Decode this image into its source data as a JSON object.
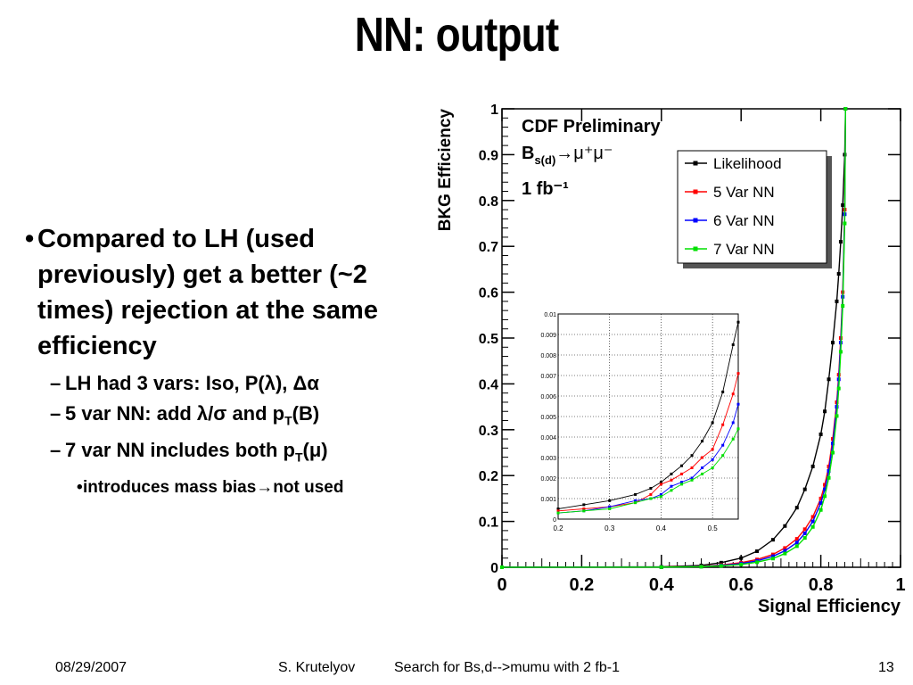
{
  "slide": {
    "title": "NN: output",
    "bullet1": "Compared to LH (used previously) get a better (~2 times) rejection at the same efficiency",
    "sub1": "LH had 3 vars: Iso, P(λ), Δα",
    "sub2_a": "5 var NN: add λ/σ and p",
    "sub2_sub": "T",
    "sub2_b": "(B)",
    "sub3_a": "7 var NN includes both p",
    "sub3_sub": "T",
    "sub3_b": "(μ)",
    "subsub1_a": "introduces mass bias",
    "subsub1_arrow": "→",
    "subsub1_b": "not used",
    "bullet_dot": "•",
    "dash": "–",
    "footer_date": "08/29/2007",
    "footer_author": "S. Krutelyov",
    "footer_talk": "Search for Bs,d-->mumu with 2 fb-1",
    "footer_page": "13"
  },
  "chart_data": [
    {
      "type": "line",
      "xlabel": "Signal Efficiency",
      "ylabel": "BKG Efficiency",
      "xlim": [
        0,
        1
      ],
      "ylim": [
        0,
        1
      ],
      "xticks": [
        "0",
        "0.2",
        "0.4",
        "0.6",
        "0.8",
        "1"
      ],
      "yticks": [
        "0",
        "0.1",
        "0.2",
        "0.3",
        "0.4",
        "0.5",
        "0.6",
        "0.7",
        "0.8",
        "0.9",
        "1"
      ],
      "annotation": {
        "line1": "CDF Preliminary",
        "line2_main": "B",
        "line2_sub": "s(d)",
        "line2_rest": "→μ⁺μ⁻",
        "line3": "1 fb⁻¹"
      },
      "legend_position": "top-right",
      "series": [
        {
          "name": "Likelihood",
          "color": "#000000",
          "x": [
            0,
            0.4,
            0.5,
            0.55,
            0.6,
            0.64,
            0.68,
            0.71,
            0.74,
            0.76,
            0.78,
            0.8,
            0.81,
            0.82,
            0.83,
            0.84,
            0.845,
            0.85,
            0.855,
            0.86,
            0.862
          ],
          "y": [
            0,
            0.001,
            0.004,
            0.01,
            0.02,
            0.035,
            0.06,
            0.09,
            0.13,
            0.17,
            0.22,
            0.29,
            0.34,
            0.41,
            0.49,
            0.58,
            0.64,
            0.71,
            0.79,
            0.9,
            1.0
          ]
        },
        {
          "name": "5 Var NN",
          "color": "#ff0000",
          "x": [
            0,
            0.4,
            0.5,
            0.55,
            0.6,
            0.64,
            0.68,
            0.71,
            0.74,
            0.76,
            0.78,
            0.8,
            0.81,
            0.82,
            0.83,
            0.84,
            0.845,
            0.85,
            0.855,
            0.86,
            0.862
          ],
          "y": [
            0,
            0.0005,
            0.002,
            0.005,
            0.01,
            0.017,
            0.028,
            0.042,
            0.062,
            0.083,
            0.11,
            0.15,
            0.18,
            0.22,
            0.28,
            0.36,
            0.42,
            0.5,
            0.6,
            0.78,
            1.0
          ]
        },
        {
          "name": "6 Var NN",
          "color": "#0000ff",
          "x": [
            0,
            0.4,
            0.5,
            0.55,
            0.6,
            0.64,
            0.68,
            0.71,
            0.74,
            0.76,
            0.78,
            0.8,
            0.81,
            0.82,
            0.83,
            0.84,
            0.845,
            0.85,
            0.855,
            0.86,
            0.862
          ],
          "y": [
            0,
            0.0004,
            0.0015,
            0.004,
            0.008,
            0.014,
            0.024,
            0.036,
            0.054,
            0.074,
            0.1,
            0.14,
            0.17,
            0.21,
            0.27,
            0.35,
            0.41,
            0.49,
            0.59,
            0.77,
            1.0
          ]
        },
        {
          "name": "7 Var NN",
          "color": "#00e000",
          "x": [
            0,
            0.4,
            0.5,
            0.55,
            0.6,
            0.64,
            0.68,
            0.71,
            0.74,
            0.76,
            0.78,
            0.8,
            0.81,
            0.82,
            0.83,
            0.84,
            0.845,
            0.85,
            0.855,
            0.86,
            0.862
          ],
          "y": [
            0,
            0.0003,
            0.0012,
            0.003,
            0.006,
            0.011,
            0.019,
            0.03,
            0.046,
            0.064,
            0.088,
            0.125,
            0.155,
            0.195,
            0.25,
            0.33,
            0.39,
            0.47,
            0.57,
            0.75,
            1.0
          ]
        }
      ]
    },
    {
      "type": "line",
      "xlim": [
        0.2,
        0.55
      ],
      "ylim": [
        0,
        0.01
      ],
      "xticks": [
        "0.2",
        "0.3",
        "0.4",
        "0.5"
      ],
      "yticks": [
        "0",
        "0.001",
        "0.002",
        "0.003",
        "0.004",
        "0.005",
        "0.006",
        "0.007",
        "0.008",
        "0.009",
        "0.01"
      ],
      "grid": true,
      "series": [
        {
          "name": "Likelihood",
          "color": "#000000",
          "x": [
            0.2,
            0.25,
            0.3,
            0.35,
            0.38,
            0.4,
            0.42,
            0.44,
            0.46,
            0.48,
            0.5,
            0.52,
            0.54,
            0.55
          ],
          "y": [
            0.0005,
            0.0007,
            0.0009,
            0.0012,
            0.0015,
            0.0018,
            0.0022,
            0.0026,
            0.0031,
            0.0038,
            0.0047,
            0.0062,
            0.0085,
            0.0096
          ]
        },
        {
          "name": "5 Var NN",
          "color": "#ff0000",
          "x": [
            0.2,
            0.25,
            0.3,
            0.35,
            0.38,
            0.4,
            0.42,
            0.44,
            0.46,
            0.48,
            0.5,
            0.52,
            0.54,
            0.55
          ],
          "y": [
            0.0004,
            0.0005,
            0.0006,
            0.0008,
            0.0012,
            0.0017,
            0.0019,
            0.0022,
            0.0025,
            0.003,
            0.0034,
            0.0046,
            0.0061,
            0.0071
          ]
        },
        {
          "name": "6 Var NN",
          "color": "#0000ff",
          "x": [
            0.2,
            0.25,
            0.3,
            0.35,
            0.38,
            0.4,
            0.42,
            0.44,
            0.46,
            0.48,
            0.5,
            0.52,
            0.54,
            0.55
          ],
          "y": [
            0.0003,
            0.0004,
            0.0006,
            0.0009,
            0.001,
            0.0012,
            0.0016,
            0.0018,
            0.002,
            0.0025,
            0.0029,
            0.0036,
            0.0047,
            0.0056
          ]
        },
        {
          "name": "7 Var NN",
          "color": "#00e000",
          "x": [
            0.2,
            0.25,
            0.3,
            0.35,
            0.38,
            0.4,
            0.42,
            0.44,
            0.46,
            0.48,
            0.5,
            0.52,
            0.54,
            0.55
          ],
          "y": [
            0.0003,
            0.0004,
            0.0005,
            0.0008,
            0.001,
            0.0011,
            0.0014,
            0.0017,
            0.0019,
            0.0022,
            0.0025,
            0.0031,
            0.0039,
            0.0044
          ]
        }
      ]
    }
  ]
}
